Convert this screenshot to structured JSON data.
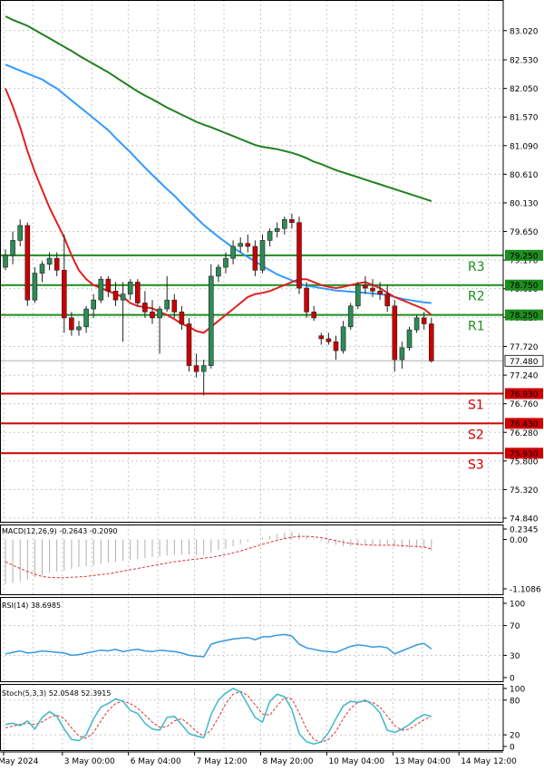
{
  "chart_data": {
    "type": "candlestick",
    "colors": {
      "bull": "#2e8b57",
      "bear": "#cc0000",
      "ma_fast": "#e02020",
      "ma_mid": "#3399ff",
      "ma_slow": "#208020",
      "resistance": "#1e8c1e",
      "support": "#d00000",
      "grid": "#c8c8c8",
      "stoch_main": "#3cb8c8",
      "stoch_signal": "#e03030",
      "rsi": "#3399dd",
      "macd_hist": "#b0b0b0",
      "macd_signal": "#e03030"
    },
    "price_axis": {
      "ylim": [
        74.84,
        83.26
      ],
      "ticks": [
        "83.020",
        "82.530",
        "82.050",
        "81.570",
        "81.090",
        "80.610",
        "80.130",
        "79.650",
        "79.170",
        "78.690",
        "78.210",
        "77.720",
        "77.240",
        "76.760",
        "76.280",
        "75.800",
        "75.320",
        "74.840"
      ],
      "current_price": "77.480",
      "current_price_value": 77.48
    },
    "time_axis": {
      "labels": [
        "May 2024",
        "3 May 00:00",
        "6 May 04:00",
        "7 May 12:00",
        "8 May 20:00",
        "10 May 04:00",
        "13 May 04:00",
        "14 May 12:00"
      ],
      "label_bars": [
        0,
        8,
        17,
        26,
        35,
        44,
        53,
        62
      ]
    },
    "levels": [
      {
        "name": "R3",
        "value": 79.25,
        "label": "79.250",
        "kind": "resistance"
      },
      {
        "name": "R2",
        "value": 78.75,
        "label": "78.750",
        "kind": "resistance"
      },
      {
        "name": "R1",
        "value": 78.25,
        "label": "78.250",
        "kind": "resistance"
      },
      {
        "name": "S1",
        "value": 76.93,
        "label": "76.930",
        "kind": "support"
      },
      {
        "name": "S2",
        "value": 76.43,
        "label": "76.430",
        "kind": "support"
      },
      {
        "name": "S3",
        "value": 75.93,
        "label": "75.930",
        "kind": "support"
      }
    ],
    "candles": [
      [
        79.05,
        79.35,
        79.0,
        79.25
      ],
      [
        79.25,
        79.65,
        79.1,
        79.5
      ],
      [
        79.5,
        79.85,
        79.4,
        79.75
      ],
      [
        79.75,
        79.8,
        78.4,
        78.5
      ],
      [
        78.5,
        79.05,
        78.45,
        78.95
      ],
      [
        78.95,
        79.15,
        78.8,
        79.1
      ],
      [
        79.1,
        79.3,
        79.0,
        79.2
      ],
      [
        79.2,
        79.3,
        78.9,
        79.0
      ],
      [
        79.0,
        79.6,
        77.95,
        78.2
      ],
      [
        78.2,
        78.3,
        77.9,
        78.0
      ],
      [
        78.0,
        78.15,
        77.9,
        78.05
      ],
      [
        78.05,
        78.4,
        77.95,
        78.35
      ],
      [
        78.35,
        78.6,
        78.2,
        78.5
      ],
      [
        78.5,
        78.9,
        78.45,
        78.85
      ],
      [
        78.85,
        78.9,
        78.55,
        78.65
      ],
      [
        78.65,
        78.8,
        78.4,
        78.5
      ],
      [
        78.5,
        78.8,
        77.8,
        78.6
      ],
      [
        78.6,
        78.85,
        78.5,
        78.8
      ],
      [
        78.8,
        78.85,
        78.4,
        78.45
      ],
      [
        78.45,
        78.65,
        78.2,
        78.3
      ],
      [
        78.3,
        78.5,
        78.1,
        78.2
      ],
      [
        78.2,
        78.4,
        77.6,
        78.35
      ],
      [
        78.35,
        78.9,
        78.3,
        78.5
      ],
      [
        78.5,
        78.6,
        78.2,
        78.3
      ],
      [
        78.3,
        78.4,
        78.0,
        78.1
      ],
      [
        78.1,
        78.2,
        77.3,
        77.4
      ],
      [
        77.4,
        77.6,
        77.2,
        77.3
      ],
      [
        77.3,
        77.5,
        76.9,
        77.4
      ],
      [
        77.4,
        79.1,
        77.35,
        78.9
      ],
      [
        78.9,
        79.1,
        78.8,
        79.05
      ],
      [
        79.05,
        79.3,
        78.95,
        79.2
      ],
      [
        79.2,
        79.5,
        79.1,
        79.4
      ],
      [
        79.4,
        79.55,
        79.3,
        79.45
      ],
      [
        79.45,
        79.6,
        79.3,
        79.4
      ],
      [
        79.4,
        79.5,
        78.9,
        79.0
      ],
      [
        79.0,
        79.6,
        78.95,
        79.5
      ],
      [
        79.5,
        79.7,
        79.4,
        79.65
      ],
      [
        79.65,
        79.8,
        79.55,
        79.7
      ],
      [
        79.7,
        79.9,
        79.6,
        79.85
      ],
      [
        79.85,
        79.95,
        79.7,
        79.8
      ],
      [
        79.8,
        79.9,
        78.6,
        78.7
      ],
      [
        78.7,
        78.8,
        78.2,
        78.3
      ],
      [
        78.3,
        78.4,
        78.15,
        78.2
      ],
      [
        77.9,
        77.95,
        77.75,
        77.85
      ],
      [
        77.85,
        77.95,
        77.75,
        77.8
      ],
      [
        77.8,
        77.9,
        77.5,
        77.65
      ],
      [
        77.65,
        78.15,
        77.6,
        78.05
      ],
      [
        78.05,
        78.45,
        78.0,
        78.4
      ],
      [
        78.4,
        78.8,
        78.35,
        78.75
      ],
      [
        78.75,
        78.9,
        78.6,
        78.7
      ],
      [
        78.7,
        78.85,
        78.55,
        78.65
      ],
      [
        78.65,
        78.8,
        78.5,
        78.6
      ],
      [
        78.6,
        78.75,
        78.3,
        78.4
      ],
      [
        78.4,
        78.5,
        77.3,
        77.5
      ],
      [
        77.5,
        77.8,
        77.35,
        77.7
      ],
      [
        77.7,
        78.05,
        77.65,
        78.0
      ],
      [
        78.0,
        78.25,
        77.95,
        78.2
      ],
      [
        78.2,
        78.3,
        78.0,
        78.1
      ],
      [
        78.1,
        78.2,
        77.45,
        77.48
      ]
    ],
    "ma_fast": [
      82.05,
      81.75,
      81.4,
      81.0,
      80.65,
      80.35,
      80.05,
      79.8,
      79.55,
      79.25,
      79.0,
      78.85,
      78.75,
      78.7,
      78.65,
      78.6,
      78.55,
      78.45,
      78.4,
      78.38,
      78.36,
      78.3,
      78.25,
      78.18,
      78.1,
      78.05,
      77.98,
      77.95,
      78.05,
      78.15,
      78.25,
      78.35,
      78.45,
      78.55,
      78.6,
      78.62,
      78.65,
      78.7,
      78.75,
      78.8,
      78.85,
      78.85,
      78.8,
      78.75,
      78.72,
      78.7,
      78.72,
      78.75,
      78.78,
      78.8,
      78.75,
      78.7,
      78.62,
      78.55,
      78.5,
      78.45,
      78.4,
      78.35,
      78.25
    ],
    "ma_mid": [
      82.45,
      82.4,
      82.35,
      82.3,
      82.25,
      82.2,
      82.12,
      82.05,
      81.95,
      81.85,
      81.75,
      81.65,
      81.55,
      81.45,
      81.35,
      81.22,
      81.1,
      80.98,
      80.85,
      80.72,
      80.6,
      80.48,
      80.36,
      80.25,
      80.12,
      80.0,
      79.88,
      79.76,
      79.66,
      79.56,
      79.47,
      79.38,
      79.3,
      79.22,
      79.15,
      79.07,
      79.0,
      78.93,
      78.88,
      78.83,
      78.78,
      78.74,
      78.72,
      78.7,
      78.68,
      78.66,
      78.65,
      78.64,
      78.63,
      78.62,
      78.61,
      78.6,
      78.58,
      78.55,
      78.52,
      78.5,
      78.48,
      78.46,
      78.45
    ],
    "ma_slow": [
      83.26,
      83.2,
      83.15,
      83.1,
      83.03,
      82.96,
      82.89,
      82.82,
      82.75,
      82.68,
      82.6,
      82.53,
      82.46,
      82.39,
      82.32,
      82.24,
      82.16,
      82.08,
      82.0,
      81.93,
      81.87,
      81.8,
      81.73,
      81.67,
      81.61,
      81.55,
      81.49,
      81.44,
      81.4,
      81.35,
      81.3,
      81.25,
      81.2,
      81.15,
      81.1,
      81.07,
      81.05,
      81.03,
      81.0,
      80.97,
      80.93,
      80.88,
      80.82,
      80.78,
      80.73,
      80.68,
      80.64,
      80.6,
      80.56,
      80.52,
      80.48,
      80.44,
      80.4,
      80.36,
      80.32,
      80.28,
      80.24,
      80.2,
      80.16
    ],
    "macd": {
      "label": "MACD(12,26,9) -0.2643 -0.2090",
      "ticks": [
        "0.2345",
        "0.00",
        "-1.1086"
      ],
      "ylim": [
        -1.1086,
        0.2345
      ],
      "hist": [
        -1.0,
        -0.98,
        -0.94,
        -0.9,
        -0.86,
        -0.8,
        -0.75,
        -0.72,
        -0.7,
        -0.66,
        -0.62,
        -0.6,
        -0.58,
        -0.55,
        -0.52,
        -0.5,
        -0.48,
        -0.46,
        -0.44,
        -0.42,
        -0.4,
        -0.38,
        -0.36,
        -0.35,
        -0.34,
        -0.34,
        -0.35,
        -0.35,
        -0.3,
        -0.24,
        -0.2,
        -0.15,
        -0.1,
        -0.05,
        0.0,
        0.04,
        0.08,
        0.12,
        0.15,
        0.17,
        0.14,
        0.08,
        0.02,
        -0.04,
        -0.08,
        -0.12,
        -0.15,
        -0.15,
        -0.14,
        -0.13,
        -0.12,
        -0.12,
        -0.12,
        -0.16,
        -0.18,
        -0.19,
        -0.18,
        -0.19,
        -0.26
      ],
      "signal": [
        -0.5,
        -0.58,
        -0.65,
        -0.72,
        -0.78,
        -0.83,
        -0.85,
        -0.86,
        -0.86,
        -0.85,
        -0.84,
        -0.83,
        -0.81,
        -0.79,
        -0.77,
        -0.74,
        -0.71,
        -0.68,
        -0.65,
        -0.62,
        -0.59,
        -0.56,
        -0.53,
        -0.5,
        -0.48,
        -0.46,
        -0.44,
        -0.42,
        -0.4,
        -0.37,
        -0.34,
        -0.3,
        -0.26,
        -0.21,
        -0.16,
        -0.11,
        -0.06,
        -0.02,
        0.02,
        0.05,
        0.07,
        0.07,
        0.06,
        0.04,
        0.01,
        -0.03,
        -0.06,
        -0.09,
        -0.11,
        -0.12,
        -0.13,
        -0.13,
        -0.13,
        -0.13,
        -0.14,
        -0.15,
        -0.16,
        -0.17,
        -0.21
      ]
    },
    "rsi": {
      "label": "RSI(14) 38.6985",
      "ticks": [
        "100",
        "70",
        "30",
        "0"
      ],
      "ylim": [
        0,
        100
      ],
      "values": [
        32,
        34,
        36,
        33,
        34,
        36,
        35,
        34,
        33,
        30,
        31,
        33,
        35,
        37,
        36,
        38,
        35,
        37,
        38,
        36,
        35,
        37,
        36,
        35,
        33,
        30,
        29,
        28,
        45,
        48,
        50,
        52,
        53,
        54,
        51,
        55,
        55,
        57,
        58,
        56,
        45,
        40,
        38,
        36,
        35,
        34,
        38,
        42,
        44,
        43,
        41,
        42,
        40,
        32,
        36,
        40,
        44,
        46,
        38.7
      ]
    },
    "stoch": {
      "label": "Stoch(5,3,3) 52.0548 52.3915",
      "ticks": [
        "100",
        "80",
        "20",
        "0"
      ],
      "ylim": [
        0,
        100
      ],
      "main": [
        38,
        40,
        36,
        44,
        30,
        50,
        60,
        52,
        30,
        12,
        10,
        20,
        48,
        68,
        74,
        82,
        78,
        62,
        57,
        40,
        30,
        28,
        50,
        52,
        38,
        22,
        18,
        15,
        55,
        80,
        92,
        100,
        94,
        72,
        50,
        42,
        78,
        90,
        86,
        64,
        22,
        8,
        4,
        8,
        24,
        48,
        70,
        78,
        76,
        80,
        72,
        58,
        28,
        24,
        30,
        38,
        48,
        55,
        52
      ],
      "signal": [
        32,
        35,
        38,
        40,
        38,
        42,
        50,
        54,
        48,
        32,
        18,
        14,
        24,
        44,
        62,
        74,
        78,
        74,
        66,
        54,
        42,
        33,
        34,
        44,
        48,
        38,
        26,
        18,
        28,
        50,
        74,
        90,
        95,
        88,
        72,
        56,
        54,
        70,
        84,
        82,
        58,
        30,
        12,
        7,
        12,
        26,
        48,
        66,
        76,
        78,
        76,
        68,
        52,
        36,
        28,
        30,
        38,
        46,
        52
      ]
    }
  }
}
